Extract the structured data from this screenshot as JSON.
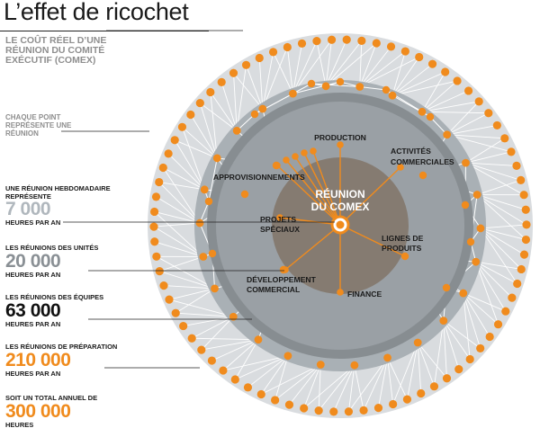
{
  "title": "L’effet de ricochet",
  "subtitle": "LE COÛT RÉEL D’UNE RÉUNION DU COMITÉ EXÉCUTIF (COMEX)",
  "note": "CHAQUE POINT REPRÉSENTE UNE RÉUNION",
  "center": {
    "line1": "RÉUNION",
    "line2": "DU COMEX"
  },
  "branches": [
    {
      "lines": [
        "PRODUCTION"
      ]
    },
    {
      "lines": [
        "ACTIVITÉS",
        "COMMERCIALES"
      ]
    },
    {
      "lines": [
        "APPROVISIONNEMENTS"
      ]
    },
    {
      "lines": [
        "PROJETS",
        "SPÉCIAUX"
      ]
    },
    {
      "lines": [
        "LIGNES DE",
        "PRODUITS"
      ]
    },
    {
      "lines": [
        "DÉVELOPPEMENT",
        "COMMERCIAL"
      ]
    },
    {
      "lines": [
        "FINANCE"
      ]
    }
  ],
  "stats": [
    {
      "label": "UNE RÉUNION HEBDOMADAIRE REPRÉSENTE",
      "value": "7 000",
      "unit": "HEURES PAR AN",
      "color": "#b0b7bd"
    },
    {
      "label": "LES RÉUNIONS DES UNITÉS",
      "value": "20 000",
      "unit": "HEURES PAR AN",
      "color": "#8a9095"
    },
    {
      "label": "LES RÉUNIONS DES ÉQUIPES",
      "value": "63 000",
      "unit": "HEURES PAR AN",
      "color": "#111111"
    },
    {
      "label": "LES RÉUNIONS DE PRÉPARATION",
      "value": "210 000",
      "unit": "HEURES PAR AN",
      "color": "#f08b1d"
    },
    {
      "label": "SOIT UN TOTAL ANNUEL DE",
      "value": "300 000",
      "unit": "HEURES",
      "color": "#f08b1d"
    }
  ],
  "colors": {
    "accent": "#f08b1d",
    "outer_ring": "#d9dcdf",
    "team_ring": "#a9b0b5",
    "unit_ring": "#878d91",
    "core": "#857b71"
  }
}
